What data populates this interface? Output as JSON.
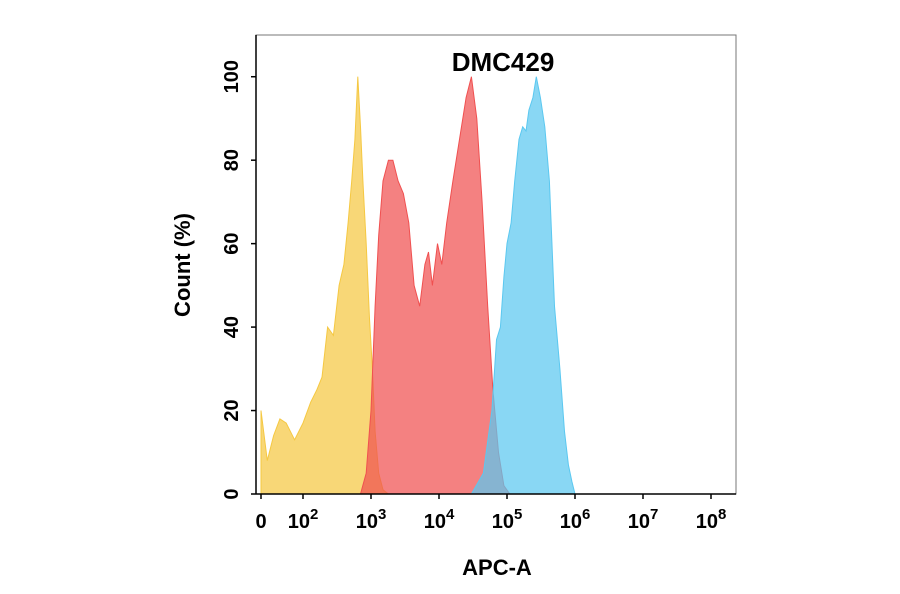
{
  "chart_data": {
    "type": "area",
    "title": "DMC429",
    "xlabel": "APC-A",
    "ylabel": "Count  (%)",
    "x_scale": "biexponential",
    "x_ticks": [
      {
        "value": 0,
        "base": "0",
        "exp": ""
      },
      {
        "value": 100,
        "base": "10",
        "exp": "2"
      },
      {
        "value": 1000,
        "base": "10",
        "exp": "3"
      },
      {
        "value": 10000,
        "base": "10",
        "exp": "4"
      },
      {
        "value": 100000,
        "base": "10",
        "exp": "5"
      },
      {
        "value": 1000000,
        "base": "10",
        "exp": "6"
      },
      {
        "value": 10000000,
        "base": "10",
        "exp": "7"
      },
      {
        "value": 100000000,
        "base": "10",
        "exp": "8"
      }
    ],
    "y_ticks": [
      "0",
      "20",
      "40",
      "60",
      "80",
      "100"
    ],
    "ylim": [
      0,
      110
    ],
    "grid": false,
    "series": [
      {
        "color": "#f5c842",
        "points": [
          [
            0,
            20
          ],
          [
            15,
            8
          ],
          [
            30,
            14
          ],
          [
            45,
            18
          ],
          [
            60,
            17
          ],
          [
            80,
            13
          ],
          [
            100,
            17
          ],
          [
            130,
            22
          ],
          [
            160,
            25
          ],
          [
            190,
            28
          ],
          [
            230,
            40
          ],
          [
            280,
            38
          ],
          [
            340,
            50
          ],
          [
            400,
            55
          ],
          [
            460,
            65
          ],
          [
            520,
            75
          ],
          [
            580,
            85
          ],
          [
            640,
            100
          ],
          [
            700,
            88
          ],
          [
            760,
            75
          ],
          [
            850,
            60
          ],
          [
            950,
            42
          ],
          [
            1050,
            30
          ],
          [
            1150,
            15
          ],
          [
            1300,
            5
          ],
          [
            1500,
            1
          ],
          [
            1800,
            0
          ]
        ]
      },
      {
        "color": "#f05050",
        "points": [
          [
            700,
            0
          ],
          [
            850,
            5
          ],
          [
            1000,
            20
          ],
          [
            1150,
            45
          ],
          [
            1300,
            62
          ],
          [
            1500,
            75
          ],
          [
            1800,
            80
          ],
          [
            2100,
            80
          ],
          [
            2500,
            75
          ],
          [
            3000,
            72
          ],
          [
            3600,
            65
          ],
          [
            4300,
            50
          ],
          [
            5200,
            45
          ],
          [
            6200,
            55
          ],
          [
            7000,
            58
          ],
          [
            8000,
            50
          ],
          [
            9500,
            60
          ],
          [
            11000,
            55
          ],
          [
            13000,
            65
          ],
          [
            16000,
            75
          ],
          [
            20000,
            85
          ],
          [
            25000,
            95
          ],
          [
            30000,
            100
          ],
          [
            36000,
            90
          ],
          [
            43000,
            70
          ],
          [
            52000,
            45
          ],
          [
            62000,
            25
          ],
          [
            75000,
            10
          ],
          [
            90000,
            2
          ],
          [
            110000,
            0
          ]
        ]
      },
      {
        "color": "#5bc8f0",
        "points": [
          [
            30000,
            0
          ],
          [
            45000,
            5
          ],
          [
            60000,
            20
          ],
          [
            70000,
            37
          ],
          [
            80000,
            40
          ],
          [
            90000,
            52
          ],
          [
            100000,
            60
          ],
          [
            115000,
            65
          ],
          [
            130000,
            75
          ],
          [
            150000,
            85
          ],
          [
            170000,
            88
          ],
          [
            190000,
            87
          ],
          [
            210000,
            92
          ],
          [
            240000,
            95
          ],
          [
            270000,
            100
          ],
          [
            310000,
            95
          ],
          [
            360000,
            88
          ],
          [
            420000,
            75
          ],
          [
            500000,
            45
          ],
          [
            600000,
            30
          ],
          [
            700000,
            15
          ],
          [
            800000,
            7
          ],
          [
            900000,
            3
          ],
          [
            1000000,
            0
          ]
        ]
      }
    ]
  }
}
